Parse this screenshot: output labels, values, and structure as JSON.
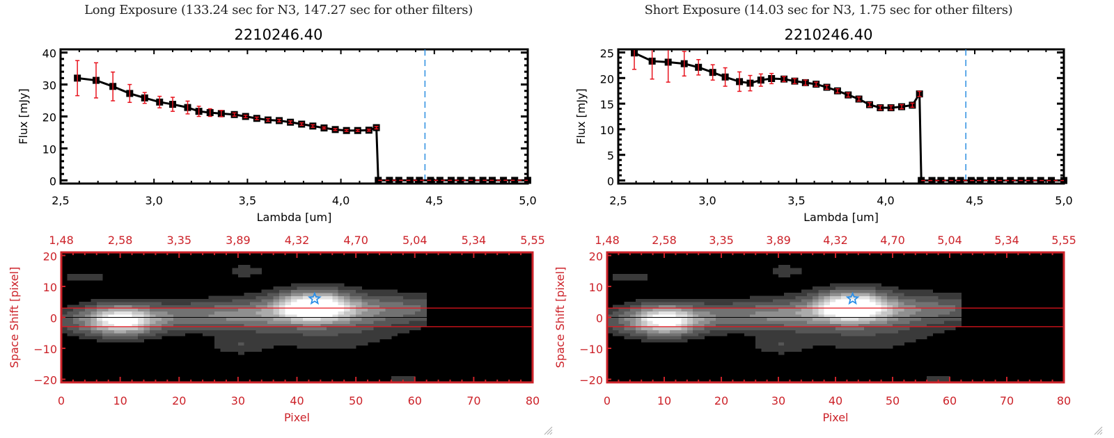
{
  "panels": [
    {
      "exposure_title": "Long Exposure (133.24 sec for N3, 147.27 sec for other filters)",
      "object_id": "2210246.40"
    },
    {
      "exposure_title": "Short Exposure (14.03 sec for N3, 1.75 sec for other filters)",
      "object_id": "2210246.40"
    }
  ],
  "colors": {
    "spectrum_line": "#000000",
    "error_bar": "#e8141e",
    "marker_line": "#2a8ee0",
    "image_axes": "#cc2229",
    "aperture_line": "#e8141e",
    "star_marker": "#2b8fe8"
  },
  "chart_data": [
    {
      "type": "line",
      "title": "2210246.40",
      "xlabel": "Lambda [um]",
      "ylabel": "Flux [mJy]",
      "xlim": [
        2.5,
        5.0
      ],
      "ylim": [
        -1,
        41
      ],
      "xticks": [
        "2.5",
        "3.0",
        "3.5",
        "4.0",
        "4.5",
        "5.0"
      ],
      "yticks": [
        "0",
        "10",
        "20",
        "30",
        "40"
      ],
      "vline_x": 4.45,
      "series": [
        {
          "name": "flux",
          "x": [
            2.59,
            2.69,
            2.78,
            2.87,
            2.95,
            3.03,
            3.1,
            3.18,
            3.24,
            3.3,
            3.36,
            3.43,
            3.49,
            3.55,
            3.61,
            3.67,
            3.73,
            3.79,
            3.85,
            3.91,
            3.97,
            4.03,
            4.09,
            4.15,
            4.19
          ],
          "y": [
            32.0,
            31.3,
            29.4,
            27.2,
            25.8,
            24.5,
            23.8,
            22.8,
            21.6,
            21.2,
            20.9,
            20.6,
            20.0,
            19.4,
            18.9,
            18.7,
            18.2,
            17.6,
            17.0,
            16.4,
            15.9,
            15.6,
            15.6,
            15.7,
            16.5
          ],
          "yerr": [
            5.5,
            5.5,
            4.5,
            2.8,
            1.7,
            1.8,
            2.2,
            2.0,
            1.6,
            1.2,
            1.0,
            0.5,
            0.4,
            0.4,
            0.4,
            0.4,
            0.4,
            0.4,
            0.4,
            0.3,
            0.3,
            0.3,
            0.3,
            0.3,
            0.4
          ]
        },
        {
          "name": "flux_zero",
          "x": [
            4.2,
            4.26,
            4.31,
            4.37,
            4.42,
            4.48,
            4.53,
            4.59,
            4.64,
            4.7,
            4.76,
            4.81,
            4.87,
            4.93,
            5.0
          ],
          "y": [
            0,
            0,
            0,
            0,
            0,
            0,
            0,
            0,
            0,
            0,
            0,
            0,
            0,
            0,
            0
          ]
        }
      ]
    },
    {
      "type": "heatmap",
      "xlabel": "Pixel",
      "ylabel": "Space Shift [pixel]",
      "xlim": [
        0,
        80
      ],
      "ylim": [
        -21,
        21
      ],
      "xticks": [
        "0",
        "10",
        "20",
        "30",
        "40",
        "50",
        "60",
        "70",
        "80"
      ],
      "yticks": [
        "-20",
        "-10",
        "0",
        "10",
        "20"
      ],
      "top_xticks": [
        "1.48",
        "2.58",
        "3.35",
        "3.89",
        "4.32",
        "4.70",
        "5.04",
        "5.34",
        "5.55"
      ],
      "aperture_lines_y": [
        3,
        -3
      ],
      "center_line_y": 0,
      "star_position": [
        43,
        6
      ]
    },
    {
      "type": "line",
      "title": "2210246.40",
      "xlabel": "Lambda [um]",
      "ylabel": "Flux [mJy]",
      "xlim": [
        2.5,
        5.0
      ],
      "ylim": [
        -0.6,
        25.6
      ],
      "xticks": [
        "2.5",
        "3.0",
        "3.5",
        "4.0",
        "4.5",
        "5.0"
      ],
      "yticks": [
        "0",
        "5",
        "10",
        "15",
        "20",
        "25"
      ],
      "vline_x": 4.45,
      "series": [
        {
          "name": "flux",
          "x": [
            2.59,
            2.69,
            2.78,
            2.87,
            2.95,
            3.03,
            3.1,
            3.18,
            3.24,
            3.3,
            3.36,
            3.43,
            3.49,
            3.55,
            3.61,
            3.67,
            3.73,
            3.79,
            3.85,
            3.91,
            3.97,
            4.03,
            4.09,
            4.15,
            4.19
          ],
          "y": [
            24.9,
            23.3,
            23.1,
            22.8,
            22.1,
            21.1,
            20.2,
            19.3,
            19.0,
            19.6,
            19.9,
            19.8,
            19.4,
            19.1,
            18.8,
            18.2,
            17.5,
            16.7,
            15.9,
            14.8,
            14.2,
            14.2,
            14.4,
            14.7,
            16.9
          ],
          "yerr": [
            3.2,
            3.5,
            3.9,
            2.4,
            1.5,
            1.5,
            1.8,
            1.9,
            1.5,
            1.2,
            1.0,
            0.5,
            0.5,
            0.5,
            0.4,
            0.4,
            0.4,
            0.4,
            0.4,
            0.4,
            0.4,
            0.4,
            0.4,
            0.4,
            0.5
          ]
        },
        {
          "name": "flux_zero",
          "x": [
            4.2,
            4.26,
            4.31,
            4.37,
            4.42,
            4.48,
            4.53,
            4.59,
            4.64,
            4.7,
            4.76,
            4.81,
            4.87,
            4.93,
            5.0
          ],
          "y": [
            0,
            0,
            0,
            0,
            0,
            0,
            0,
            0,
            0,
            0,
            0,
            0,
            0,
            0,
            0
          ]
        }
      ]
    },
    {
      "type": "heatmap",
      "xlabel": "Pixel",
      "ylabel": "Space Shift [pixel]",
      "xlim": [
        0,
        80
      ],
      "ylim": [
        -21,
        21
      ],
      "xticks": [
        "0",
        "10",
        "20",
        "30",
        "40",
        "50",
        "60",
        "70",
        "80"
      ],
      "yticks": [
        "-20",
        "-10",
        "0",
        "10",
        "20"
      ],
      "top_xticks": [
        "1.48",
        "2.58",
        "3.35",
        "3.89",
        "4.32",
        "4.70",
        "5.04",
        "5.34",
        "5.55"
      ],
      "aperture_lines_y": [
        3,
        -3
      ],
      "center_line_y": 0,
      "star_position": [
        43,
        6
      ]
    }
  ]
}
